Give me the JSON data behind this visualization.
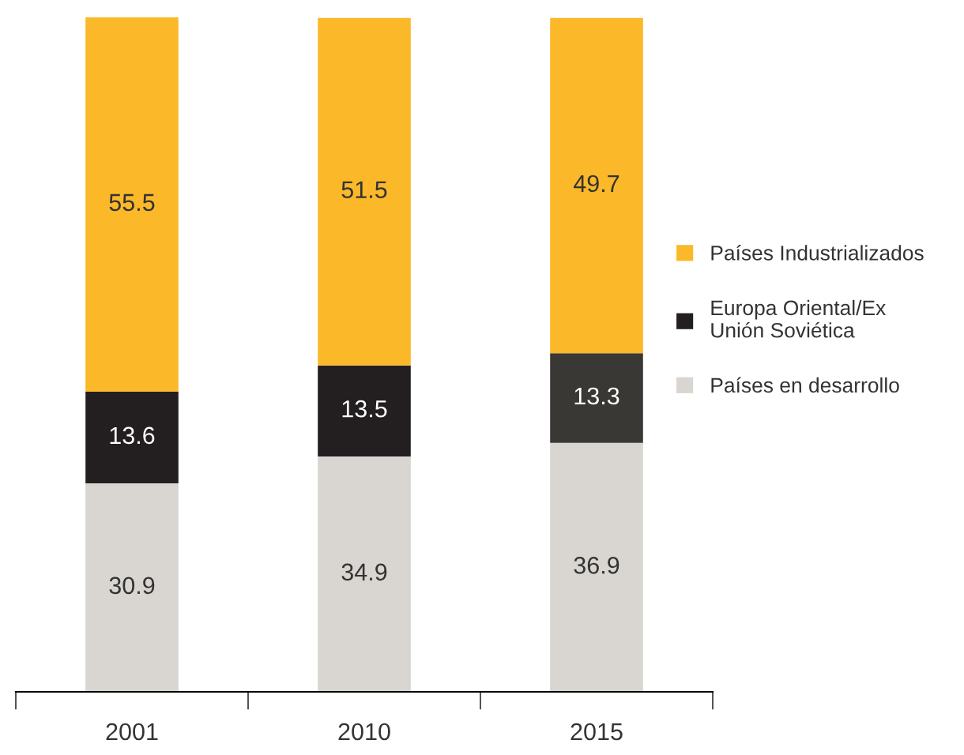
{
  "chart_data": {
    "type": "bar",
    "stacked": true,
    "categories": [
      "2001",
      "2010",
      "2015"
    ],
    "series": [
      {
        "name": "Países en desarrollo",
        "color": "#d9d5d0",
        "values": [
          30.9,
          34.9,
          36.9
        ]
      },
      {
        "name": "Europa Oriental/Ex\nUnión Soviética",
        "color": "#231f20",
        "colors": [
          "#231f20",
          "#231f20",
          "#3a3835"
        ],
        "values": [
          13.6,
          13.5,
          13.3
        ]
      },
      {
        "name": "Países Industrializados",
        "color": "#fbb829",
        "values": [
          55.5,
          51.5,
          49.7
        ]
      }
    ],
    "ylim": [
      0,
      100
    ],
    "data_labels": true,
    "legend": "right",
    "grid": false
  }
}
